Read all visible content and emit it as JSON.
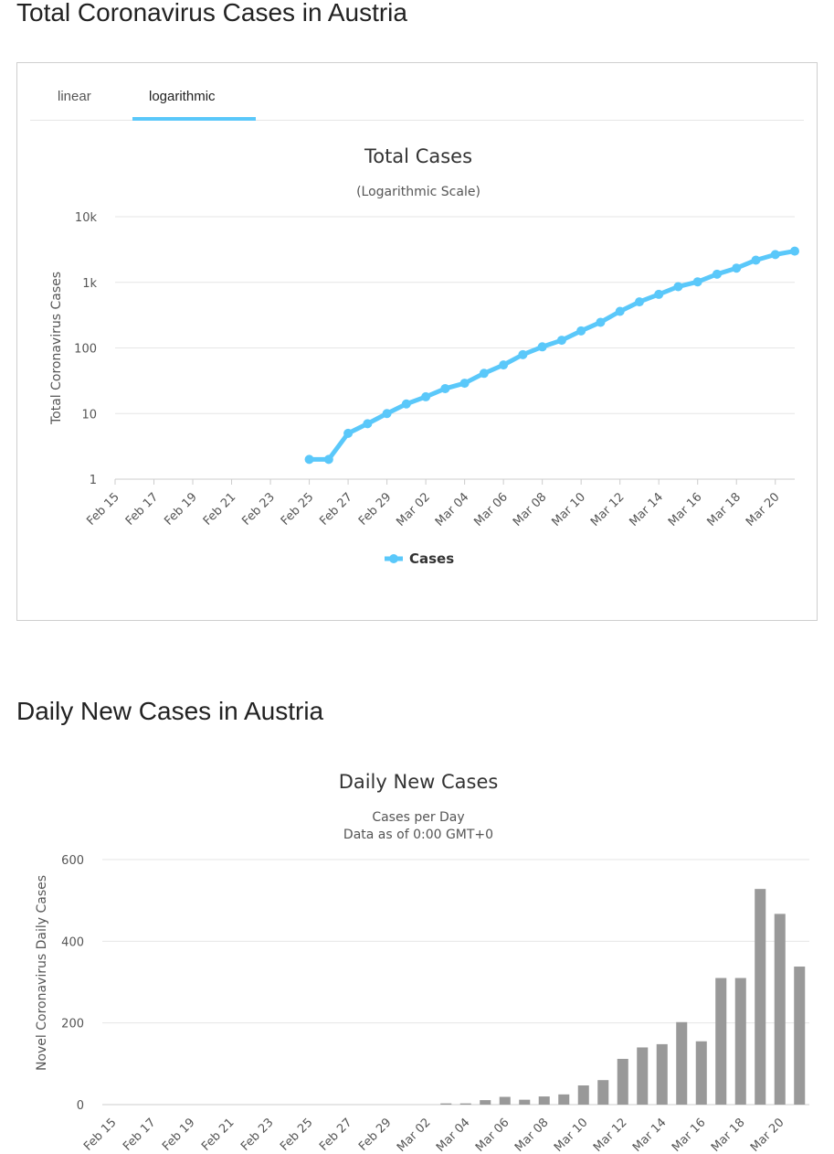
{
  "headings": {
    "total": "Total Coronavirus Cases in Austria",
    "daily": "Daily New Cases in Austria"
  },
  "tabs": {
    "linear": "linear",
    "logarithmic": "logarithmic",
    "active": "logarithmic"
  },
  "colors": {
    "line": "#5ac8fa",
    "bar": "#999999",
    "tab_accent": "#5ac8fa"
  },
  "chart_data": [
    {
      "type": "line",
      "title": "Total Cases",
      "subtitle": "(Logarithmic Scale)",
      "ylabel": "Total Coronavirus Cases",
      "xlabel": "",
      "y_scale": "log",
      "ylim": [
        1,
        10000
      ],
      "yticks": [
        "1",
        "10",
        "100",
        "1k",
        "10k"
      ],
      "ytick_values": [
        1,
        10,
        100,
        1000,
        10000
      ],
      "grid": true,
      "legend": "bottom-center",
      "x": [
        "Feb 15",
        "Feb 16",
        "Feb 17",
        "Feb 18",
        "Feb 19",
        "Feb 20",
        "Feb 21",
        "Feb 22",
        "Feb 23",
        "Feb 24",
        "Feb 25",
        "Feb 26",
        "Feb 27",
        "Feb 28",
        "Feb 29",
        "Mar 01",
        "Mar 02",
        "Mar 03",
        "Mar 04",
        "Mar 05",
        "Mar 06",
        "Mar 07",
        "Mar 08",
        "Mar 09",
        "Mar 10",
        "Mar 11",
        "Mar 12",
        "Mar 13",
        "Mar 14",
        "Mar 15",
        "Mar 16",
        "Mar 17",
        "Mar 18",
        "Mar 19",
        "Mar 20",
        "Mar 21"
      ],
      "xtick_labels": [
        "Feb 15",
        "Feb 17",
        "Feb 19",
        "Feb 21",
        "Feb 23",
        "Feb 25",
        "Feb 27",
        "Feb 29",
        "Mar 02",
        "Mar 04",
        "Mar 06",
        "Mar 08",
        "Mar 10",
        "Mar 12",
        "Mar 14",
        "Mar 16",
        "Mar 18",
        "Mar 20"
      ],
      "series": [
        {
          "name": "Cases",
          "values": [
            null,
            null,
            null,
            null,
            null,
            null,
            null,
            null,
            null,
            null,
            2,
            2,
            5,
            7,
            10,
            14,
            18,
            24,
            29,
            41,
            55,
            79,
            104,
            131,
            182,
            246,
            361,
            504,
            655,
            860,
            1018,
            1332,
            1646,
            2179,
            2649,
            2992
          ]
        }
      ]
    },
    {
      "type": "bar",
      "title": "Daily New Cases",
      "subtitle": [
        "Cases per Day",
        "Data as of 0:00 GMT+0"
      ],
      "ylabel": "Novel Coronavirus Daily Cases",
      "xlabel": "",
      "ylim": [
        0,
        600
      ],
      "yticks": [
        0,
        200,
        400,
        600
      ],
      "grid": true,
      "categories": [
        "Feb 15",
        "Feb 16",
        "Feb 17",
        "Feb 18",
        "Feb 19",
        "Feb 20",
        "Feb 21",
        "Feb 22",
        "Feb 23",
        "Feb 24",
        "Feb 25",
        "Feb 26",
        "Feb 27",
        "Feb 28",
        "Feb 29",
        "Mar 01",
        "Mar 02",
        "Mar 03",
        "Mar 04",
        "Mar 05",
        "Mar 06",
        "Mar 07",
        "Mar 08",
        "Mar 09",
        "Mar 10",
        "Mar 11",
        "Mar 12",
        "Mar 13",
        "Mar 14",
        "Mar 15",
        "Mar 16",
        "Mar 17",
        "Mar 18",
        "Mar 19",
        "Mar 20",
        "Mar 21"
      ],
      "xtick_labels": [
        "Feb 15",
        "Feb 17",
        "Feb 19",
        "Feb 21",
        "Feb 23",
        "Feb 25",
        "Feb 27",
        "Feb 29",
        "Mar 02",
        "Mar 04",
        "Mar 06",
        "Mar 08",
        "Mar 10",
        "Mar 12",
        "Mar 14",
        "Mar 16",
        "Mar 18",
        "Mar 20"
      ],
      "values": [
        0,
        0,
        0,
        0,
        0,
        0,
        0,
        0,
        0,
        0,
        0,
        0,
        0,
        0,
        0,
        0,
        0,
        3,
        3,
        11,
        19,
        12,
        20,
        25,
        47,
        60,
        112,
        140,
        148,
        202,
        155,
        310,
        310,
        528,
        467,
        338
      ]
    }
  ]
}
